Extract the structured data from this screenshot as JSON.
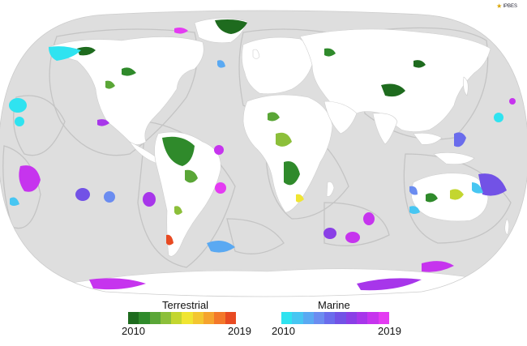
{
  "colors": {
    "ocean": "#dedede",
    "land": "#ffffff",
    "eez_outline": "#bdbdbd",
    "background": "#ffffff"
  },
  "logo": {
    "text": "IPBES",
    "icon": "star-icon"
  },
  "legend": {
    "terrestrial": {
      "title": "Terrestrial",
      "start_year": "2010",
      "end_year": "2019",
      "colors": [
        "#1e6b1e",
        "#2f8a2b",
        "#5aa637",
        "#8cbf3a",
        "#c3d62f",
        "#f0e531",
        "#f3c630",
        "#f5a32e",
        "#f3782a",
        "#e84a22"
      ]
    },
    "marine": {
      "title": "Marine",
      "start_year": "2010",
      "end_year": "2019",
      "colors": [
        "#2fe3f0",
        "#47c6f2",
        "#5aa9f2",
        "#6b8cf0",
        "#6a6cec",
        "#7252e6",
        "#8a3fe6",
        "#a736ea",
        "#c634ee",
        "#e43bf2"
      ]
    }
  }
}
